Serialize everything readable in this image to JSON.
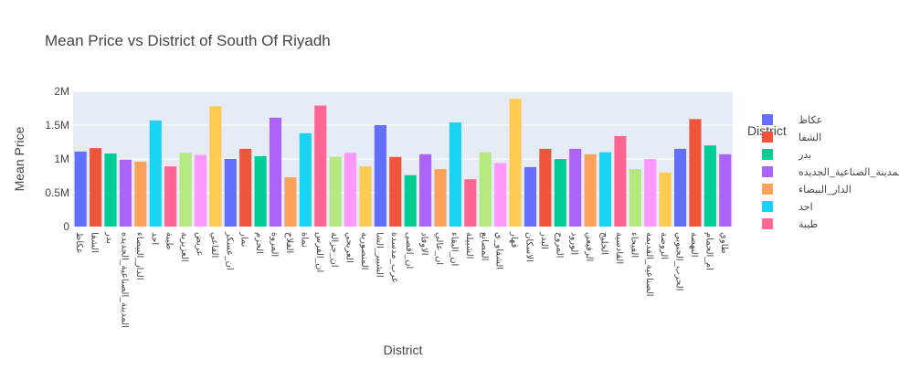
{
  "chart_data": {
    "type": "bar",
    "title": "Mean Price vs District of South Of Riyadh",
    "xlabel": "District",
    "ylabel": "Mean Price",
    "ylim": [
      0,
      2000000
    ],
    "yticks": [
      0,
      500000,
      1000000,
      1500000,
      2000000
    ],
    "ytick_labels": [
      "0",
      "0.5M",
      "1M",
      "1.5M",
      "2M"
    ],
    "grid": true,
    "legend": {
      "title": "District",
      "position": "right",
      "entries": [
        {
          "label": "عكاظ",
          "color": "#636efa"
        },
        {
          "label": "الشفا",
          "color": "#ef553b"
        },
        {
          "label": "بدر",
          "color": "#00cc96"
        },
        {
          "label": "المدينة_الصناعية_الجديده",
          "color": "#ab63fa"
        },
        {
          "label": "الدار_البيضاء",
          "color": "#ffa15a"
        },
        {
          "label": "احد",
          "color": "#19d3f3"
        },
        {
          "label": "طيبة",
          "color": "#ff6692"
        }
      ]
    },
    "categories": [
      "عكاظ",
      "الشفا",
      "بدر",
      "المدينة_الصناعية_الجديده",
      "الدار_البيضاء",
      "احد",
      "طيبة",
      "العزيزية",
      "عريض",
      "القاعي",
      "ان_عسكر",
      "نمار",
      "الحزم",
      "المروة",
      "الفلاح",
      "نماة",
      "ان_الفرس",
      "ان_جزالة",
      "العريجي",
      "المنصورية",
      "الشبير_الشا",
      "غرب_مدسدة",
      "ان_اقصى",
      "الاوفاد",
      "ان_عالي",
      "ان_البقاء",
      "الشبيلة",
      "المصانع",
      "الشفاو_ي",
      "قهار",
      "الاسكان",
      "البدر",
      "المروج",
      "الورود",
      "الرفيعي",
      "الخليج",
      "القادسية",
      "الفيحاء",
      "الصناعية_القديمة",
      "الروضة",
      "الحرب_الجنوبي",
      "النهضة",
      "ام_الحمام",
      "طاوي"
    ],
    "values": [
      1110000,
      1160000,
      1080000,
      990000,
      960000,
      1570000,
      890000,
      1090000,
      1060000,
      1780000,
      1000000,
      1150000,
      1040000,
      1610000,
      730000,
      1380000,
      1790000,
      1030000,
      1090000,
      890000,
      1500000,
      1030000,
      760000,
      1070000,
      850000,
      1540000,
      700000,
      1100000,
      940000,
      1890000,
      880000,
      1150000,
      1000000,
      1150000,
      1070000,
      1100000,
      1340000,
      850000,
      1000000,
      800000,
      1150000,
      1590000,
      1200000,
      1070000
    ],
    "colors": [
      "#636efa",
      "#ef553b",
      "#00cc96",
      "#ab63fa",
      "#ffa15a",
      "#19d3f3",
      "#ff6692",
      "#b6e880",
      "#ff97ff",
      "#fecb52",
      "#636efa",
      "#ef553b",
      "#00cc96",
      "#ab63fa",
      "#ffa15a",
      "#19d3f3",
      "#ff6692",
      "#b6e880",
      "#ff97ff",
      "#fecb52",
      "#636efa",
      "#ef553b",
      "#00cc96",
      "#ab63fa",
      "#ffa15a",
      "#19d3f3",
      "#ff6692",
      "#b6e880",
      "#ff97ff",
      "#fecb52",
      "#636efa",
      "#ef553b",
      "#00cc96",
      "#ab63fa",
      "#ffa15a",
      "#19d3f3",
      "#ff6692",
      "#b6e880",
      "#ff97ff",
      "#fecb52",
      "#636efa",
      "#ef553b",
      "#00cc96",
      "#ab63fa"
    ]
  }
}
